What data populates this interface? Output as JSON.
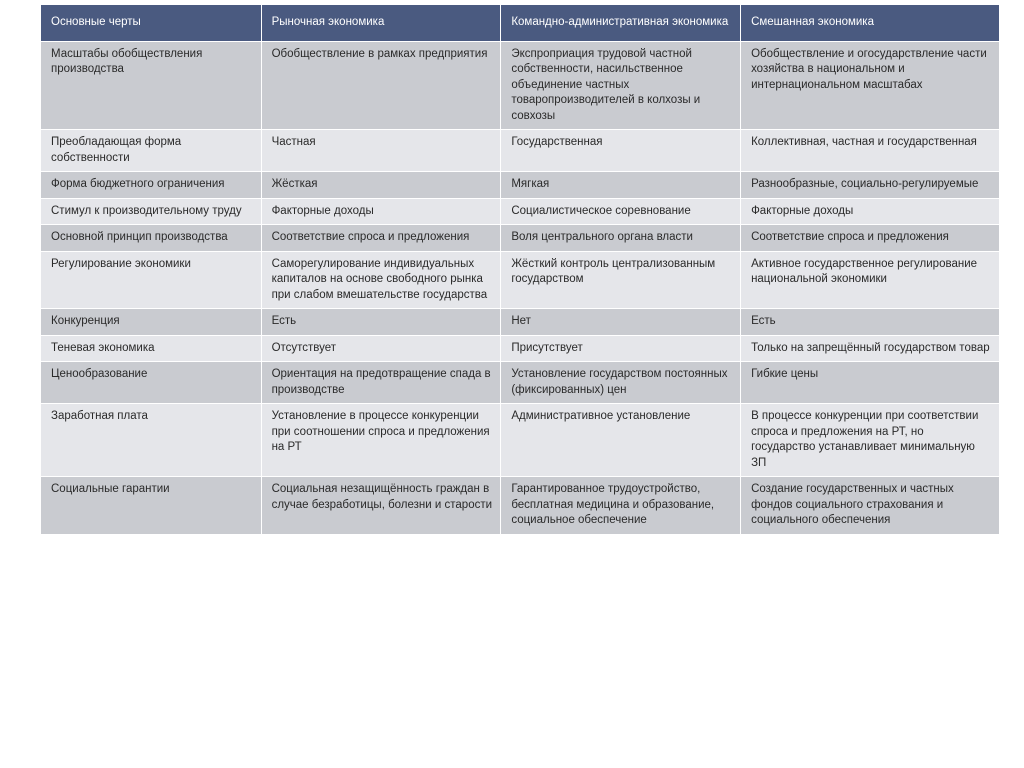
{
  "table": {
    "header_bg": "#4a5a80",
    "header_fg": "#ffffff",
    "row_odd_bg": "#c9cbd0",
    "row_even_bg": "#e5e6ea",
    "text_color": "#2a2a2a",
    "border_color": "#ffffff",
    "font_size_pt": 9,
    "columns": [
      "Основные черты",
      "Рыночная экономика",
      "Командно-административная экономика",
      "Смешанная экономика"
    ],
    "column_widths_pct": [
      23,
      25,
      25,
      27
    ],
    "rows": [
      [
        "Масштабы обобществления производства",
        "Обобществление в рамках предприятия",
        "Экспроприация трудовой частной собственности, насильственное объединение частных товаропроизводителей в колхозы и совхозы",
        "Обобществление и огосударствление части хозяйства в национальном и интернациональном масштабах"
      ],
      [
        "Преобладающая форма собственности",
        "Частная",
        "Государственная",
        "Коллективная, частная и государственная"
      ],
      [
        "Форма бюджетного ограничения",
        "Жёсткая",
        "Мягкая",
        "Разнообразные, социально-регулируемые"
      ],
      [
        "Стимул к производительному труду",
        "Факторные доходы",
        "Социалистическое соревнование",
        "Факторные доходы"
      ],
      [
        "Основной принцип производства",
        "Соответствие спроса и предложения",
        "Воля центрального органа власти",
        "Соответствие спроса и предложения"
      ],
      [
        "Регулирование экономики",
        "Саморегулирование индивидуальных капиталов на основе свободного рынка при слабом вмешательстве государства",
        "Жёсткий контроль централизованным государством",
        "Активное государственное регулирование национальной экономики"
      ],
      [
        "Конкуренция",
        "Есть",
        "Нет",
        "Есть"
      ],
      [
        "Теневая экономика",
        "Отсутствует",
        "Присутствует",
        "Только на запрещённый государством товар"
      ],
      [
        "Ценообразование",
        "Ориентация на предотвращение спада в производстве",
        "Установление государством постоянных (фиксированных)  цен",
        "Гибкие цены"
      ],
      [
        "Заработная плата",
        "Установление в процессе конкуренции при соотношении спроса и предложения на РТ",
        "Административное установление",
        "В процессе конкуренции при соответствии спроса и предложения на РТ, но государство устанавливает минимальную ЗП"
      ],
      [
        "Социальные гарантии",
        "Социальная незащищённость граждан в случае безработицы, болезни и старости",
        "Гарантированное трудоустройство, бесплатная медицина и образование, социальное обеспечение",
        "Создание государственных и частных фондов социального страхования и социального обеспечения"
      ]
    ]
  }
}
